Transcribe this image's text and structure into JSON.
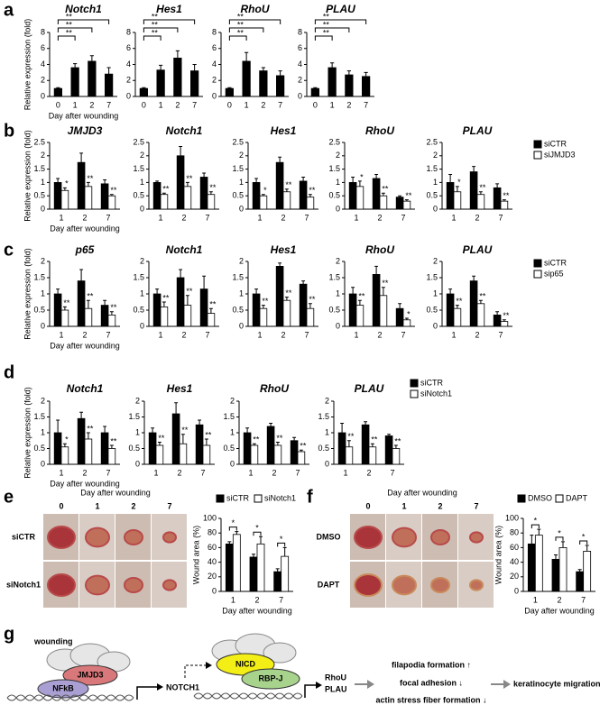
{
  "panels": [
    "a",
    "b",
    "c",
    "d",
    "e",
    "f",
    "g"
  ],
  "chart_data": [
    {
      "type": "bar",
      "title": "Notch1",
      "ylabel": "Relative expression (fold)",
      "xlabel": "Day after wounding",
      "categories": [
        "0",
        "1",
        "2",
        "7"
      ],
      "color": "#000000",
      "values": [
        1,
        3.6,
        4.4,
        2.8
      ],
      "errors": [
        0.1,
        0.5,
        0.7,
        0.8
      ],
      "brackets": [
        "**",
        "**",
        "**"
      ],
      "ylim": [
        0,
        8
      ],
      "yticks": [
        0,
        2,
        4,
        6,
        8
      ]
    },
    {
      "type": "bar",
      "title": "Hes1",
      "categories": [
        "0",
        "1",
        "2",
        "7"
      ],
      "color": "#000000",
      "values": [
        1,
        3.3,
        4.8,
        3.2
      ],
      "errors": [
        0.1,
        0.6,
        0.9,
        0.8
      ],
      "brackets": [
        "**",
        "**",
        "**"
      ],
      "ylim": [
        0,
        8
      ],
      "yticks": [
        0,
        2,
        4,
        6,
        8
      ]
    },
    {
      "type": "bar",
      "title": "RhoU",
      "categories": [
        "0",
        "1",
        "2",
        "7"
      ],
      "color": "#000000",
      "values": [
        1,
        4.4,
        3.2,
        2.6
      ],
      "errors": [
        0.1,
        1.1,
        0.4,
        0.6
      ],
      "brackets": [
        "**",
        "**",
        "**"
      ],
      "ylim": [
        0,
        8
      ],
      "yticks": [
        0,
        2,
        4,
        6,
        8
      ]
    },
    {
      "type": "bar",
      "title": "PLAU",
      "categories": [
        "0",
        "1",
        "2",
        "7"
      ],
      "color": "#000000",
      "values": [
        1,
        3.6,
        2.7,
        2.5
      ],
      "errors": [
        0.1,
        0.6,
        0.5,
        0.5
      ],
      "brackets": [
        "**",
        "**",
        "**"
      ],
      "ylim": [
        0,
        8
      ],
      "yticks": [
        0,
        2,
        4,
        6,
        8
      ]
    },
    {
      "type": "bar",
      "title": "JMJD3",
      "ylabel": "Relative expression (fold)",
      "xlabel": "Day after wounding",
      "categories": [
        "1",
        "2",
        "7"
      ],
      "series": [
        {
          "color": "#000000",
          "values": [
            1.0,
            1.75,
            0.95
          ],
          "errors": [
            0.15,
            0.35,
            0.15
          ]
        },
        {
          "color": "#ffffff",
          "values": [
            0.7,
            0.85,
            0.5
          ],
          "errors": [
            0.1,
            0.15,
            0.05
          ],
          "stars": [
            "*",
            "**",
            "**"
          ]
        }
      ],
      "ylim": [
        0,
        2.5
      ],
      "yticks": [
        0,
        0.5,
        1,
        1.5,
        2,
        2.5
      ]
    },
    {
      "type": "bar",
      "title": "Notch1",
      "categories": [
        "1",
        "2",
        "7"
      ],
      "series": [
        {
          "color": "#000000",
          "values": [
            1.0,
            2.0,
            1.2
          ],
          "errors": [
            0.05,
            0.35,
            0.15
          ]
        },
        {
          "color": "#ffffff",
          "values": [
            0.55,
            0.85,
            0.55
          ],
          "errors": [
            0.05,
            0.15,
            0.1
          ],
          "stars": [
            "**",
            "**",
            "**"
          ]
        }
      ],
      "ylim": [
        0,
        2.5
      ],
      "yticks": [
        0,
        0.5,
        1,
        1.5,
        2,
        2.5
      ]
    },
    {
      "type": "bar",
      "title": "Hes1",
      "categories": [
        "1",
        "2",
        "7"
      ],
      "series": [
        {
          "color": "#000000",
          "values": [
            1.0,
            1.75,
            1.05
          ],
          "errors": [
            0.15,
            0.2,
            0.15
          ]
        },
        {
          "color": "#ffffff",
          "values": [
            0.5,
            0.65,
            0.45
          ],
          "errors": [
            0.05,
            0.1,
            0.1
          ],
          "stars": [
            "*",
            "**",
            "**"
          ]
        }
      ],
      "ylim": [
        0,
        2.5
      ],
      "yticks": [
        0,
        0.5,
        1,
        1.5,
        2,
        2.5
      ]
    },
    {
      "type": "bar",
      "title": "RhoU",
      "categories": [
        "1",
        "2",
        "7"
      ],
      "series": [
        {
          "color": "#000000",
          "values": [
            1.0,
            1.15,
            0.45
          ],
          "errors": [
            0.2,
            0.15,
            0.05
          ]
        },
        {
          "color": "#ffffff",
          "values": [
            0.85,
            0.5,
            0.3
          ],
          "errors": [
            0.2,
            0.1,
            0.05
          ],
          "stars": [
            "*",
            "**",
            "**"
          ]
        }
      ],
      "ylim": [
        0,
        2.5
      ],
      "yticks": [
        0,
        0.5,
        1,
        1.5,
        2,
        2.5
      ]
    },
    {
      "type": "bar",
      "title": "PLAU",
      "categories": [
        "1",
        "2",
        "7"
      ],
      "series": [
        {
          "name": "siCTR",
          "color": "#000000",
          "values": [
            1.0,
            1.4,
            0.8
          ],
          "errors": [
            0.3,
            0.2,
            0.15
          ]
        },
        {
          "name": "siJMJD3",
          "color": "#ffffff",
          "values": [
            0.65,
            0.55,
            0.3
          ],
          "errors": [
            0.2,
            0.1,
            0.05
          ],
          "stars": [
            "*",
            "**",
            "**"
          ]
        }
      ],
      "ylim": [
        0,
        2.5
      ],
      "yticks": [
        0,
        0.5,
        1,
        1.5,
        2,
        2.5
      ]
    },
    {
      "type": "bar",
      "title": "p65",
      "ylabel": "Relative expression (fold)",
      "xlabel": "Day after wounding",
      "categories": [
        "1",
        "2",
        "7"
      ],
      "series": [
        {
          "color": "#000000",
          "values": [
            1.0,
            1.4,
            0.65
          ],
          "errors": [
            0.15,
            0.35,
            0.15
          ]
        },
        {
          "color": "#ffffff",
          "values": [
            0.5,
            0.55,
            0.35
          ],
          "errors": [
            0.1,
            0.25,
            0.1
          ],
          "stars": [
            "**",
            "**",
            "**"
          ]
        }
      ],
      "ylim": [
        0,
        2
      ],
      "yticks": [
        0,
        0.5,
        1,
        1.5,
        2
      ]
    },
    {
      "type": "bar",
      "title": "Notch1",
      "categories": [
        "1",
        "2",
        "7"
      ],
      "series": [
        {
          "color": "#000000",
          "values": [
            1.0,
            1.5,
            1.15
          ],
          "errors": [
            0.15,
            0.25,
            0.4
          ]
        },
        {
          "color": "#ffffff",
          "values": [
            0.6,
            0.65,
            0.4
          ],
          "errors": [
            0.15,
            0.3,
            0.15
          ],
          "stars": [
            "**",
            "**",
            "**"
          ]
        }
      ],
      "ylim": [
        0,
        2
      ],
      "yticks": [
        0,
        0.5,
        1,
        1.5,
        2
      ]
    },
    {
      "type": "bar",
      "title": "Hes1",
      "categories": [
        "1",
        "2",
        "7"
      ],
      "series": [
        {
          "color": "#000000",
          "values": [
            1.0,
            1.85,
            1.3
          ],
          "errors": [
            0.15,
            0.1,
            0.1
          ]
        },
        {
          "color": "#ffffff",
          "values": [
            0.55,
            0.8,
            0.55
          ],
          "errors": [
            0.1,
            0.1,
            0.15
          ],
          "stars": [
            "**",
            "**",
            "**"
          ]
        }
      ],
      "ylim": [
        0,
        2
      ],
      "yticks": [
        0,
        0.5,
        1,
        1.5,
        2
      ]
    },
    {
      "type": "bar",
      "title": "RhoU",
      "categories": [
        "1",
        "2",
        "7"
      ],
      "series": [
        {
          "color": "#000000",
          "values": [
            1.0,
            1.6,
            0.55
          ],
          "errors": [
            0.2,
            0.25,
            0.15
          ]
        },
        {
          "color": "#ffffff",
          "values": [
            0.65,
            0.95,
            0.2
          ],
          "errors": [
            0.15,
            0.25,
            0.05
          ],
          "stars": [
            "**",
            "**",
            "*"
          ]
        }
      ],
      "ylim": [
        0,
        2
      ],
      "yticks": [
        0,
        0.5,
        1,
        1.5,
        2
      ]
    },
    {
      "type": "bar",
      "title": "PLAU",
      "categories": [
        "1",
        "2",
        "7"
      ],
      "series": [
        {
          "name": "siCTR",
          "color": "#000000",
          "values": [
            1.0,
            1.4,
            0.35
          ],
          "errors": [
            0.15,
            0.15,
            0.1
          ]
        },
        {
          "name": "sip65",
          "color": "#ffffff",
          "values": [
            0.55,
            0.7,
            0.15
          ],
          "errors": [
            0.1,
            0.1,
            0.05
          ],
          "stars": [
            "**",
            "**",
            "**"
          ]
        }
      ],
      "ylim": [
        0,
        2
      ],
      "yticks": [
        0,
        0.5,
        1,
        1.5,
        2
      ]
    },
    {
      "type": "bar",
      "title": "Notch1",
      "ylabel": "Relative expression (fold)",
      "xlabel": "Day after wounding",
      "categories": [
        "1",
        "2",
        "7"
      ],
      "series": [
        {
          "color": "#000000",
          "values": [
            1.0,
            1.45,
            1.0
          ],
          "errors": [
            0.4,
            0.2,
            0.2
          ]
        },
        {
          "color": "#ffffff",
          "values": [
            0.55,
            0.8,
            0.5
          ],
          "errors": [
            0.1,
            0.2,
            0.1
          ],
          "stars": [
            "*",
            "**",
            "**"
          ]
        }
      ],
      "ylim": [
        0,
        2
      ],
      "yticks": [
        0,
        0.5,
        1,
        1.5,
        2
      ]
    },
    {
      "type": "bar",
      "title": "Hes1",
      "categories": [
        "1",
        "2",
        "7"
      ],
      "series": [
        {
          "color": "#000000",
          "values": [
            1.0,
            1.6,
            1.25
          ],
          "errors": [
            0.15,
            0.35,
            0.15
          ]
        },
        {
          "color": "#ffffff",
          "values": [
            0.6,
            0.65,
            0.6
          ],
          "errors": [
            0.1,
            0.3,
            0.2
          ],
          "stars": [
            "**",
            "**",
            "**"
          ]
        }
      ],
      "ylim": [
        0,
        2
      ],
      "yticks": [
        0,
        0.5,
        1,
        1.5,
        2
      ]
    },
    {
      "type": "bar",
      "title": "RhoU",
      "categories": [
        "1",
        "2",
        "7"
      ],
      "series": [
        {
          "color": "#000000",
          "values": [
            1.0,
            1.2,
            0.75
          ],
          "errors": [
            0.15,
            0.1,
            0.1
          ]
        },
        {
          "color": "#ffffff",
          "values": [
            0.6,
            0.6,
            0.4
          ],
          "errors": [
            0.05,
            0.1,
            0.05
          ],
          "stars": [
            "**",
            "**",
            "**"
          ]
        }
      ],
      "ylim": [
        0,
        2
      ],
      "yticks": [
        0,
        0.5,
        1,
        1.5,
        2
      ]
    },
    {
      "type": "bar",
      "title": "PLAU",
      "categories": [
        "1",
        "2",
        "7"
      ],
      "series": [
        {
          "name": "siCTR",
          "color": "#000000",
          "values": [
            1.0,
            1.25,
            0.9
          ],
          "errors": [
            0.3,
            0.1,
            0.05
          ]
        },
        {
          "name": "siNotch1",
          "color": "#ffffff",
          "values": [
            0.55,
            0.55,
            0.5
          ],
          "errors": [
            0.2,
            0.1,
            0.1
          ],
          "stars": [
            "**",
            "**",
            "**"
          ]
        }
      ],
      "ylim": [
        0,
        2
      ],
      "yticks": [
        0,
        0.5,
        1,
        1.5,
        2
      ]
    },
    {
      "type": "bar",
      "ylabel": "Wound area (%)",
      "xlabel": "Day after wounding",
      "categories": [
        "1",
        "2",
        "7"
      ],
      "series": [
        {
          "name": "siCTR",
          "color": "#000000",
          "values": [
            65,
            47,
            27
          ],
          "errors": [
            3,
            4,
            4
          ]
        },
        {
          "name": "siNotch1",
          "color": "#ffffff",
          "values": [
            78,
            65,
            48
          ],
          "errors": [
            4,
            10,
            12
          ]
        }
      ],
      "pair_stars": [
        "*",
        "*",
        "*"
      ],
      "ylim": [
        0,
        100
      ],
      "yticks": [
        0,
        20,
        40,
        60,
        80,
        100
      ]
    },
    {
      "type": "bar",
      "ylabel": "Wound area (%)",
      "xlabel": "Day after wounding",
      "categories": [
        "1",
        "2",
        "7"
      ],
      "series": [
        {
          "name": "DMSO",
          "color": "#000000",
          "values": [
            65,
            44,
            27
          ],
          "errors": [
            12,
            6,
            3
          ]
        },
        {
          "name": "DAPT",
          "color": "#ffffff",
          "values": [
            77,
            60,
            55
          ],
          "errors": [
            8,
            8,
            8
          ]
        }
      ],
      "pair_stars": [
        "*",
        "*",
        "*"
      ],
      "ylim": [
        0,
        100
      ],
      "yticks": [
        0,
        20,
        40,
        60,
        80,
        100
      ]
    }
  ],
  "photo_panels": [
    {
      "title": "Day after wounding",
      "columns": [
        "0",
        "1",
        "2",
        "7"
      ],
      "rows": [
        "siCTR",
        "siNotch1"
      ]
    },
    {
      "title": "Day after wounding",
      "columns": [
        "0",
        "1",
        "2",
        "7"
      ],
      "rows": [
        "DMSO",
        "DAPT"
      ]
    }
  ],
  "diagram": {
    "stimulus": "wounding",
    "left_factors": [
      "JMJD3",
      "NFkB"
    ],
    "gene": "NOTCH1",
    "right_factors": [
      "NICD",
      "RBP-J"
    ],
    "targets": [
      "RhoU",
      "PLAU"
    ],
    "effects": [
      "filapodia formation ↑",
      "focal adhesion ↓",
      "actin stress fiber formation ↓"
    ],
    "outcome": "keratinocyte migration"
  }
}
